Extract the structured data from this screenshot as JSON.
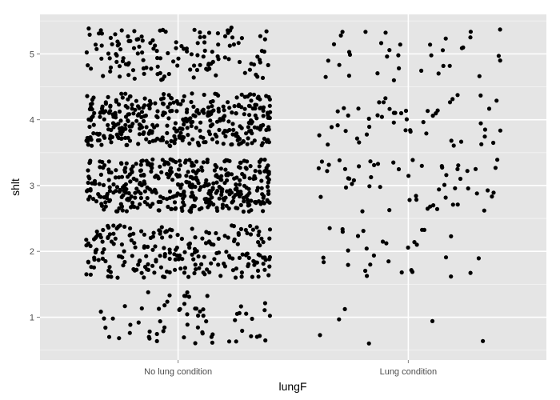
{
  "chart_data": {
    "type": "scatter",
    "jitter": true,
    "xlabel": "lungF",
    "ylabel": "shlt",
    "categories": [
      "No lung condition",
      "Lung condition"
    ],
    "y_ticks": [
      1,
      2,
      3,
      4,
      5
    ],
    "ylim": [
      0.35,
      5.6
    ],
    "grid": true,
    "series": [
      {
        "category": "No lung condition",
        "points_per_level": {
          "1": 65,
          "2": 230,
          "3": 420,
          "4": 380,
          "5": 140
        },
        "approx_count": 1235
      },
      {
        "category": "Lung condition",
        "points_per_level": {
          "1": 6,
          "2": 30,
          "3": 55,
          "4": 50,
          "5": 35
        },
        "approx_count": 176
      }
    ],
    "colors": {
      "panel": "#e5e5e5",
      "grid_major": "#ffffff",
      "grid_minor": "#f2f2f2",
      "point": "#000000"
    }
  }
}
